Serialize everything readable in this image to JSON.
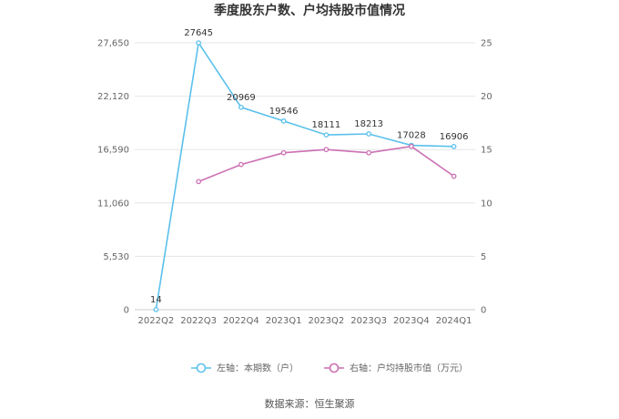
{
  "chart_data": {
    "type": "line",
    "title": "季度股东户数、户均持股市值情况",
    "categories": [
      "2022Q2",
      "2022Q3",
      "2022Q4",
      "2023Q1",
      "2023Q2",
      "2023Q3",
      "2023Q4",
      "2024Q1"
    ],
    "left_axis": {
      "ylim": [
        0,
        27650
      ],
      "ticks": [
        "0",
        "5,530",
        "11,060",
        "16,590",
        "22,120",
        "27,650"
      ]
    },
    "right_axis": {
      "ylim": [
        0,
        25
      ],
      "ticks": [
        "0",
        "5",
        "10",
        "15",
        "20",
        "25"
      ]
    },
    "series": [
      {
        "name": "左轴：本期数（户）",
        "axis": "left",
        "color": "#5bc0eb",
        "values": [
          14,
          27645,
          20969,
          19546,
          18111,
          18213,
          17028,
          16906
        ],
        "labels": [
          "14",
          "27645",
          "20969",
          "19546",
          "18111",
          "18213",
          "17028",
          "16906"
        ]
      },
      {
        "name": "右轴：户均持股市值（万元）",
        "axis": "right",
        "color": "#cc6fb3",
        "values": [
          null,
          12.0,
          13.6,
          14.7,
          15.0,
          14.7,
          15.3,
          12.5
        ]
      }
    ],
    "grid": true,
    "legend_position": "bottom"
  },
  "source": "数据来源：恒生聚源"
}
